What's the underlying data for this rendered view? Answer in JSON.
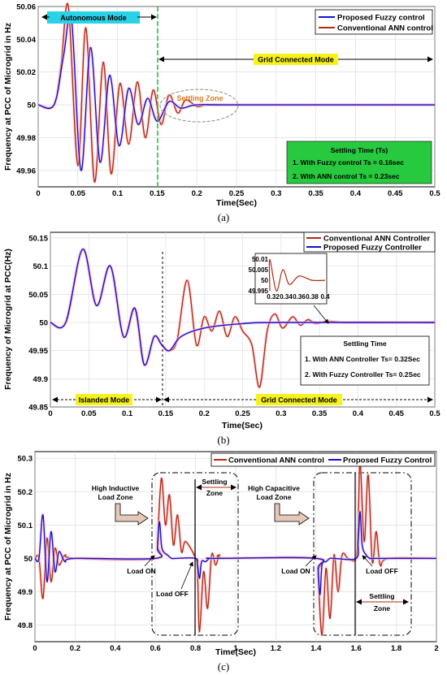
{
  "colors": {
    "fuzzy": "#1010d8",
    "ann": "#b22a10",
    "green": "#27c93f",
    "cyan": "#29d2e6",
    "yellow": "#f6f21a",
    "orange": "#e07b20",
    "pink": "#ffb6c8",
    "box_arrow": "#e5c9b8"
  },
  "panels": {
    "a": {
      "caption": "(a)",
      "chart_data": {
        "type": "line",
        "ylabel": "Frequency at PCC of Microgrid in Hz",
        "xlabel": "Time(Sec)",
        "xlim": [
          0,
          0.5
        ],
        "ylim": [
          49.95,
          50.06
        ],
        "xticks": [
          "0",
          "0.05",
          "0.1",
          "0.15",
          "0.2",
          "0.25",
          "0.3",
          "0.35",
          "0.4",
          "0.45",
          "0.5"
        ],
        "yticks": [
          "50.06",
          "50.04",
          "50.02",
          "50",
          "49.98",
          "49.96"
        ],
        "legend": [
          "Proposed Fuzzy control",
          "Conventional ANN control"
        ],
        "series": [
          {
            "name": "Proposed Fuzzy control",
            "x": [
              0,
              0.02,
              0.032,
              0.042,
              0.054,
              0.066,
              0.078,
              0.09,
              0.102,
              0.114,
              0.126,
              0.138,
              0.15,
              0.165,
              0.18,
              0.2,
              0.25,
              0.5
            ],
            "y": [
              50,
              50,
              50.03,
              50.052,
              49.96,
              50.035,
              49.965,
              50.018,
              49.975,
              50.01,
              49.988,
              50.004,
              49.99,
              50.002,
              49.998,
              50,
              50,
              50
            ]
          },
          {
            "name": "Conventional ANN control",
            "x": [
              0,
              0.02,
              0.029,
              0.038,
              0.05,
              0.06,
              0.071,
              0.082,
              0.092,
              0.103,
              0.114,
              0.125,
              0.135,
              0.145,
              0.155,
              0.165,
              0.176,
              0.186,
              0.2,
              0.21,
              0.22,
              0.25,
              0.5
            ],
            "y": [
              50,
              50,
              50.025,
              50.06,
              49.963,
              50.047,
              49.953,
              50.026,
              49.958,
              50.013,
              49.976,
              50.014,
              49.98,
              50.009,
              49.988,
              50.006,
              49.995,
              50.003,
              49.999,
              50,
              50,
              50,
              50
            ]
          }
        ]
      },
      "annotations": {
        "autonomous": "Autonomous Mode",
        "grid": "Grid Connected Mode",
        "settling_zone": "Settling Zone",
        "box_title": "Settling Time (Ts)",
        "box_line1": "1. With Fuzzy control Ts = 0.16sec",
        "box_line2": "2. With ANN control Ts = 0.23sec"
      }
    },
    "b": {
      "caption": "(b)",
      "chart_data": {
        "type": "line",
        "ylabel": "Frequency of Microgrid at PCC(Hz)",
        "xlabel": "Time(Sec)",
        "xlim": [
          0,
          0.5
        ],
        "ylim": [
          49.85,
          50.16
        ],
        "xticks": [
          "0",
          "0.05",
          "0.1",
          "0.15",
          "0.2",
          "0.25",
          "0.3",
          "0.35",
          "0.4",
          "0.45",
          "0.5"
        ],
        "yticks": [
          "50.15",
          "50.1",
          "50.05",
          "50",
          "49.95",
          "49.9",
          "49.85"
        ],
        "legend": [
          "Conventional ANN Controller",
          "Proposed Fuzzy Controller"
        ],
        "series": [
          {
            "name": "Conventional ANN Controller",
            "x": [
              0,
              0.02,
              0.042,
              0.06,
              0.078,
              0.095,
              0.11,
              0.122,
              0.135,
              0.145,
              0.155,
              0.165,
              0.178,
              0.19,
              0.2,
              0.21,
              0.22,
              0.23,
              0.24,
              0.25,
              0.262,
              0.272,
              0.282,
              0.292,
              0.302,
              0.315,
              0.325,
              0.335,
              0.345,
              0.36,
              0.38,
              0.4,
              0.5
            ],
            "y": [
              50,
              50,
              50.13,
              50.03,
              50.1,
              49.975,
              50.025,
              49.925,
              49.975,
              49.96,
              49.95,
              49.97,
              50.075,
              49.96,
              50.01,
              49.985,
              50.02,
              49.975,
              50.01,
              49.985,
              49.96,
              49.885,
              49.985,
              50.015,
              49.99,
              50.01,
              49.995,
              50.005,
              49.998,
              50.002,
              50,
              50,
              50
            ]
          },
          {
            "name": "Proposed Fuzzy Controller",
            "x": [
              0,
              0.02,
              0.042,
              0.06,
              0.078,
              0.095,
              0.11,
              0.122,
              0.135,
              0.145,
              0.155,
              0.17,
              0.2,
              0.25,
              0.3,
              0.5
            ],
            "y": [
              50,
              50,
              50.13,
              50.03,
              50.1,
              49.975,
              50.025,
              49.925,
              49.975,
              49.96,
              49.95,
              49.975,
              49.99,
              49.998,
              50,
              50
            ]
          }
        ],
        "inset": {
          "xlim": [
            0.315,
            0.4
          ],
          "ylim": [
            49.995,
            50.012
          ],
          "xticks": [
            "0.32",
            "0.34",
            "0.36",
            "0.38",
            "0.4"
          ],
          "yticks": [
            "50.01",
            "50.005",
            "50",
            "49.995"
          ]
        }
      },
      "annotations": {
        "islanded": "Islanded Mode",
        "grid": "Grid Connected Mode",
        "box_title": "Settling Time",
        "box_line1": "1. With ANN Controller Ts= 0.32Sec",
        "box_line2": "2. With Fuzzy Controller Ts= 0.2Sec"
      }
    },
    "c": {
      "caption": "(c)",
      "chart_data": {
        "type": "line",
        "ylabel": "Frequency at PCC of Microgrid in Hz",
        "xlabel": "Time(Sec)",
        "xlim": [
          0,
          2
        ],
        "ylim": [
          49.75,
          50.32
        ],
        "xticks": [
          "0",
          "0.2",
          "0.4",
          "0.6",
          "0.8",
          "1",
          "1.2",
          "1.4",
          "1.6",
          "1.8",
          "2"
        ],
        "yticks": [
          "50.3",
          "50.2",
          "50.1",
          "50",
          "49.9",
          "49.8"
        ],
        "legend": [
          "Conventional ANN control",
          "Proposed Fuzzy Control"
        ],
        "series": [
          {
            "name": "Conventional ANN control",
            "x": [
              0,
              0.02,
              0.04,
              0.06,
              0.08,
              0.1,
              0.12,
              0.15,
              0.2,
              0.6,
              0.61,
              0.63,
              0.65,
              0.67,
              0.69,
              0.71,
              0.73,
              0.75,
              0.8,
              0.81,
              0.82,
              0.84,
              0.86,
              0.88,
              0.9,
              0.92,
              0.95,
              1.4,
              1.41,
              1.43,
              1.45,
              1.47,
              1.49,
              1.51,
              1.53,
              1.56,
              1.6,
              1.61,
              1.62,
              1.64,
              1.66,
              1.68,
              1.7,
              1.72,
              1.76,
              2
            ],
            "y": [
              50,
              50,
              49.88,
              50.06,
              49.93,
              50.03,
              49.98,
              50.01,
              50,
              50,
              50.05,
              50.24,
              50.1,
              50.19,
              50.04,
              50.13,
              50.02,
              50.05,
              50,
              49.95,
              49.78,
              49.96,
              49.85,
              50.01,
              49.98,
              50.01,
              50,
              50,
              49.95,
              49.77,
              49.97,
              49.82,
              50.01,
              49.9,
              50.01,
              50,
              50,
              50.1,
              50.29,
              50.05,
              50.25,
              49.99,
              50.08,
              49.98,
              50,
              50
            ]
          },
          {
            "name": "Proposed Fuzzy Control",
            "x": [
              0,
              0.02,
              0.04,
              0.06,
              0.08,
              0.1,
              0.12,
              0.15,
              0.2,
              0.6,
              0.61,
              0.62,
              0.63,
              0.64,
              0.66,
              0.68,
              0.7,
              0.8,
              0.81,
              0.82,
              0.83,
              0.85,
              0.87,
              0.9,
              1.4,
              1.41,
              1.42,
              1.43,
              1.45,
              1.47,
              1.49,
              1.6,
              1.61,
              1.62,
              1.63,
              1.65,
              1.67,
              1.7,
              2
            ],
            "y": [
              50,
              50,
              50.13,
              49.93,
              50.08,
              49.96,
              50.02,
              49.99,
              50,
              50,
              50.03,
              50.11,
              50.04,
              50.02,
              50.01,
              50,
              50,
              50,
              49.98,
              49.94,
              49.99,
              49.99,
              50,
              50,
              50,
              49.97,
              49.89,
              49.98,
              49.99,
              50,
              50,
              50,
              50.05,
              50.14,
              50.04,
              50.01,
              50,
              50,
              50
            ]
          }
        ]
      },
      "annotations": {
        "inductive1": "High Inductive",
        "inductive2": "Load Zone",
        "capacitive1": "High Capacitive",
        "capacitive2": "Load Zone",
        "settling1": "Settling",
        "settling2": "Zone",
        "load_on_1": "Load ON",
        "load_off_1": "Load OFF",
        "load_on_2": "Load ON",
        "load_off_2": "Load OFF",
        "settling3": "Settling",
        "settling4": "Zone"
      }
    }
  }
}
